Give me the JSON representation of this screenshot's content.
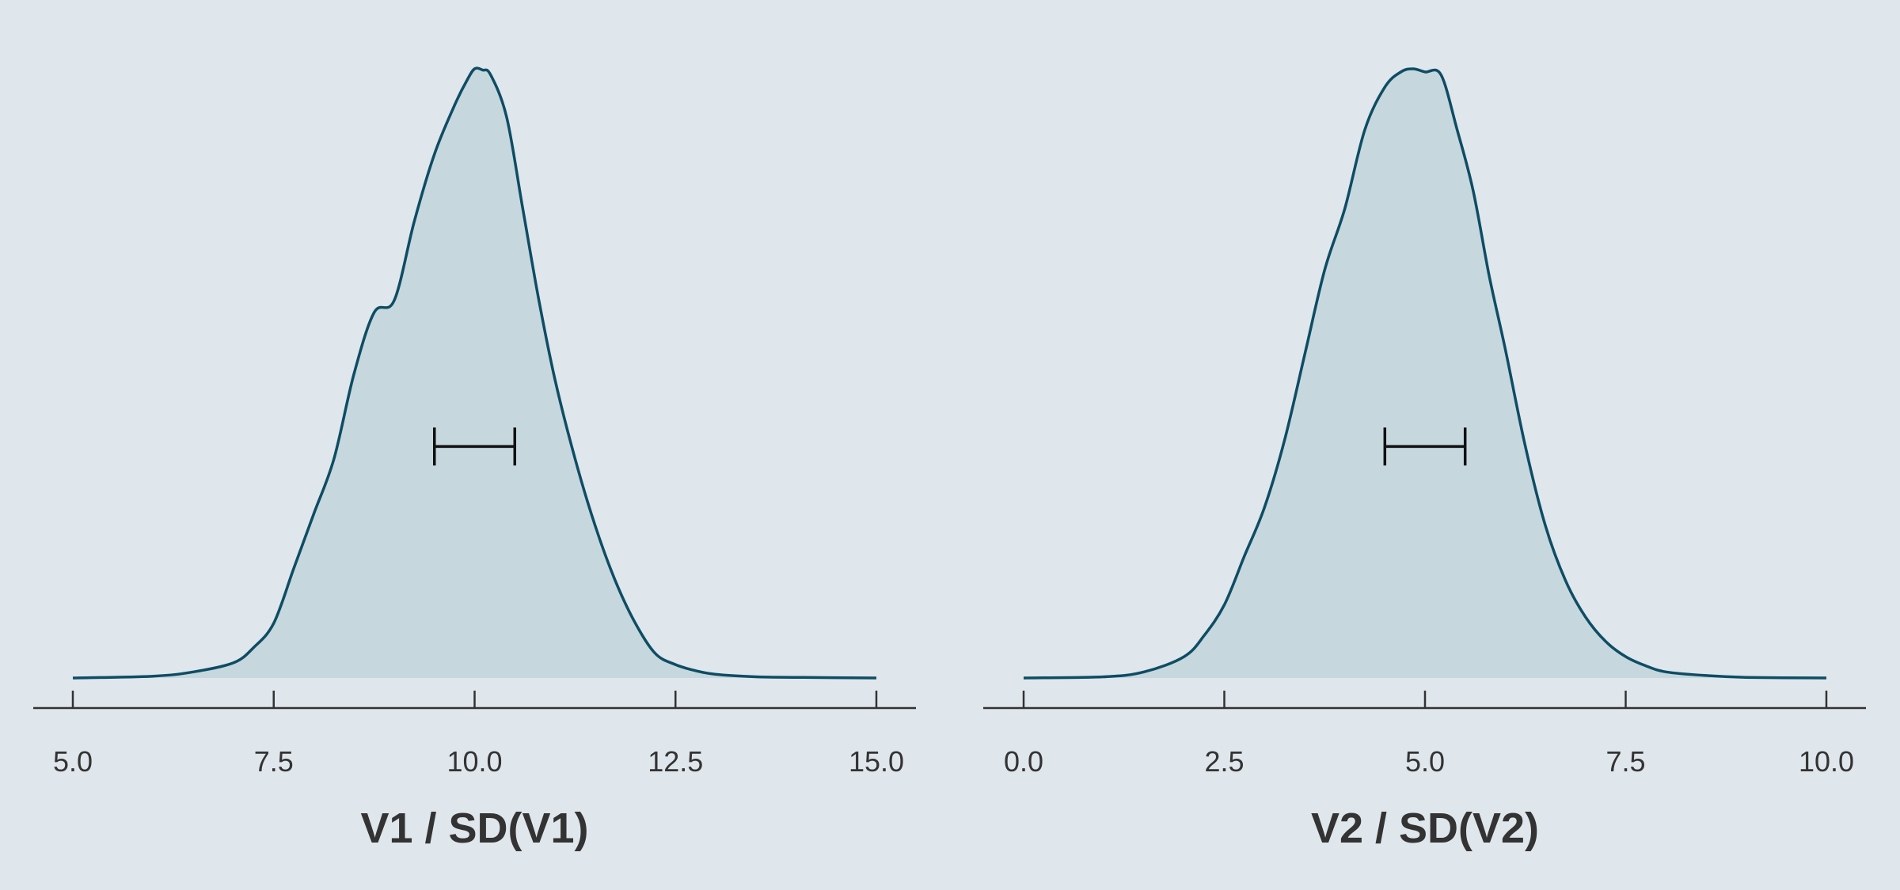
{
  "chart_data": [
    {
      "type": "area",
      "xlabel": "V1 / SD(V1)",
      "xlim": [
        5.0,
        15.0
      ],
      "ticks": [
        5.0,
        7.5,
        10.0,
        12.5,
        15.0
      ],
      "tick_labels": [
        "5.0",
        "7.5",
        "10.0",
        "12.5",
        "15.0"
      ],
      "density_max": 1.0,
      "density": {
        "x": [
          5.0,
          6.0,
          6.5,
          7.0,
          7.25,
          7.5,
          7.75,
          8.0,
          8.25,
          8.5,
          8.75,
          9.0,
          9.25,
          9.5,
          9.75,
          9.9,
          10.0,
          10.1,
          10.2,
          10.4,
          10.6,
          10.8,
          11.0,
          11.25,
          11.5,
          11.75,
          12.0,
          12.25,
          12.5,
          12.75,
          13.0,
          13.5,
          14.0,
          15.0
        ],
        "y": [
          0.0,
          0.003,
          0.01,
          0.025,
          0.05,
          0.09,
          0.18,
          0.27,
          0.36,
          0.5,
          0.6,
          0.62,
          0.75,
          0.86,
          0.94,
          0.98,
          1.0,
          0.998,
          0.99,
          0.92,
          0.77,
          0.62,
          0.49,
          0.36,
          0.25,
          0.16,
          0.09,
          0.04,
          0.022,
          0.012,
          0.006,
          0.002,
          0.001,
          0.0
        ]
      },
      "interval": [
        9.5,
        10.5
      ],
      "interval_height": 0.38
    },
    {
      "type": "area",
      "xlabel": "V2 / SD(V2)",
      "xlim": [
        0.0,
        10.0
      ],
      "ticks": [
        0.0,
        2.5,
        5.0,
        7.5,
        10.0
      ],
      "tick_labels": [
        "0.0",
        "2.5",
        "5.0",
        "7.5",
        "10.0"
      ],
      "density_max": 1.0,
      "density": {
        "x": [
          0.0,
          1.0,
          1.5,
          2.0,
          2.25,
          2.5,
          2.75,
          3.0,
          3.25,
          3.5,
          3.75,
          4.0,
          4.25,
          4.5,
          4.7,
          4.85,
          5.0,
          5.2,
          5.4,
          5.6,
          5.8,
          6.0,
          6.25,
          6.5,
          6.75,
          7.0,
          7.25,
          7.5,
          7.75,
          8.0,
          8.5,
          9.0,
          10.0
        ],
        "y": [
          0.0,
          0.002,
          0.01,
          0.035,
          0.07,
          0.12,
          0.2,
          0.28,
          0.39,
          0.53,
          0.67,
          0.77,
          0.9,
          0.97,
          0.995,
          1.0,
          0.995,
          0.99,
          0.9,
          0.8,
          0.66,
          0.54,
          0.38,
          0.25,
          0.16,
          0.1,
          0.06,
          0.035,
          0.02,
          0.01,
          0.004,
          0.001,
          0.0
        ]
      },
      "interval": [
        4.5,
        5.5
      ],
      "interval_height": 0.38
    }
  ]
}
